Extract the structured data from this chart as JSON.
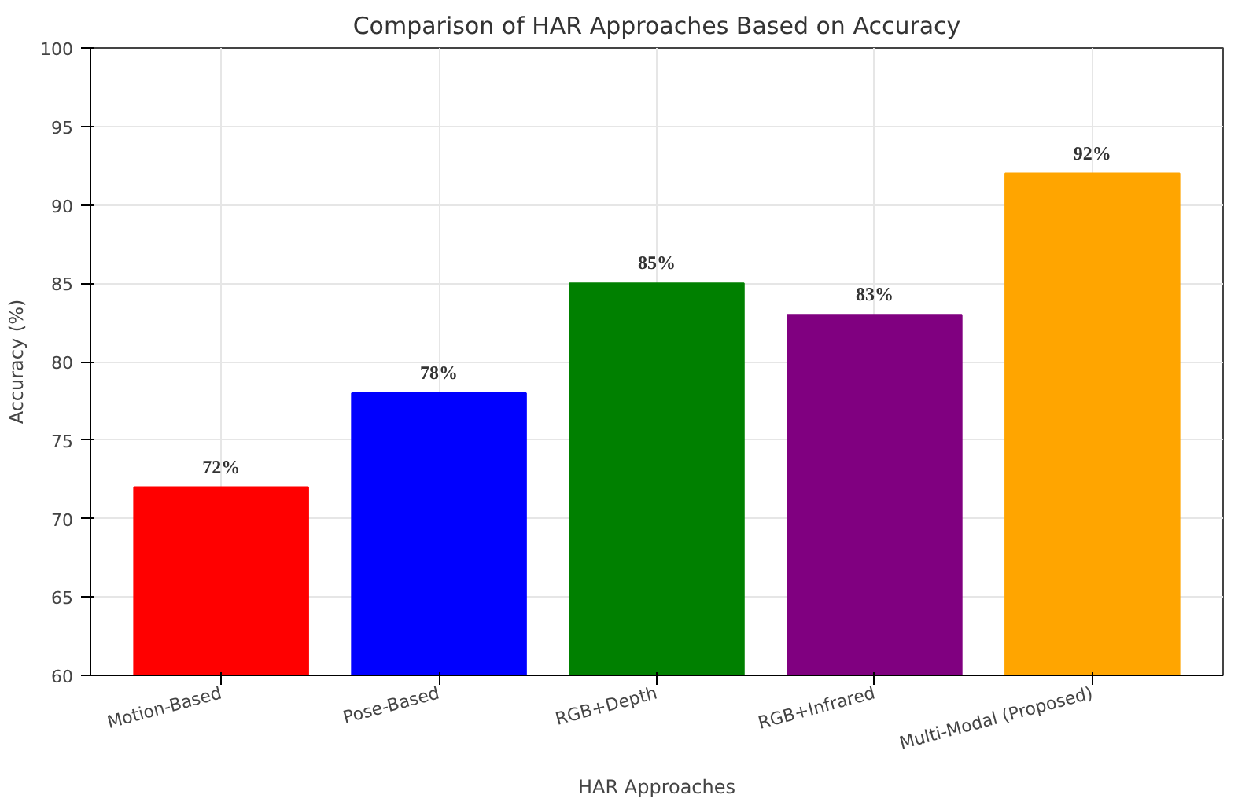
{
  "chart_data": {
    "type": "bar",
    "title": "Comparison of HAR Approaches Based on Accuracy",
    "xlabel": "HAR Approaches",
    "ylabel": "Accuracy (%)",
    "categories": [
      "Motion-Based",
      "Pose-Based",
      "RGB+Depth",
      "RGB+Infrared",
      "Multi-Modal (Proposed)"
    ],
    "values": [
      72,
      78,
      85,
      83,
      92
    ],
    "colors": [
      "#ff0000",
      "#0000ff",
      "#008000",
      "#800080",
      "#ffa500"
    ],
    "value_labels": [
      "72%",
      "78%",
      "85%",
      "83%",
      "92%"
    ],
    "ylim": [
      60,
      100
    ],
    "yticks": [
      60,
      65,
      70,
      75,
      80,
      85,
      90,
      95,
      100
    ],
    "grid": true
  }
}
